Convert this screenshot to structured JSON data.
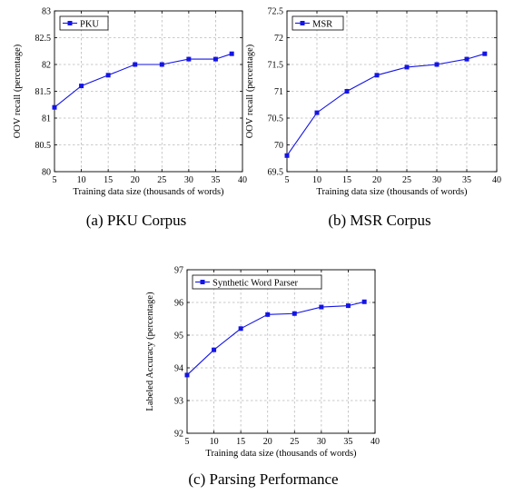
{
  "chart_data": [
    {
      "type": "line",
      "title": "",
      "caption": "(a) PKU Corpus",
      "xlabel": "Training data size (thousands of words)",
      "ylabel": "OOV recall (percentage)",
      "xlim": [
        5,
        40
      ],
      "ylim": [
        80,
        83
      ],
      "xticks": [
        5,
        10,
        15,
        20,
        25,
        30,
        35,
        40
      ],
      "yticks": [
        80,
        80.5,
        81,
        81.5,
        82,
        82.5,
        83
      ],
      "ytick_labels": [
        "80",
        "80.5",
        "81",
        "81.5",
        "82",
        "82.5",
        "83"
      ],
      "grid": true,
      "legend_position": "top-left",
      "series": [
        {
          "name": "PKU",
          "color": "#1414e6",
          "x": [
            5,
            10,
            15,
            20,
            25,
            30,
            35,
            38
          ],
          "y": [
            81.2,
            81.6,
            81.8,
            82.0,
            82.0,
            82.1,
            82.1,
            82.2
          ]
        }
      ]
    },
    {
      "type": "line",
      "title": "",
      "caption": "(b) MSR Corpus",
      "xlabel": "Training data size (thousands of words)",
      "ylabel": "OOV recall (percentage)",
      "xlim": [
        5,
        40
      ],
      "ylim": [
        69.5,
        72.5
      ],
      "xticks": [
        5,
        10,
        15,
        20,
        25,
        30,
        35,
        40
      ],
      "yticks": [
        69.5,
        70,
        70.5,
        71,
        71.5,
        72,
        72.5
      ],
      "ytick_labels": [
        "69.5",
        "70",
        "70.5",
        "71",
        "71.5",
        "72",
        "72.5"
      ],
      "grid": true,
      "legend_position": "top-left",
      "series": [
        {
          "name": "MSR",
          "color": "#1414e6",
          "x": [
            5,
            10,
            15,
            20,
            25,
            30,
            35,
            38
          ],
          "y": [
            69.8,
            70.6,
            71.0,
            71.3,
            71.45,
            71.5,
            71.6,
            71.7
          ]
        }
      ]
    },
    {
      "type": "line",
      "title": "",
      "caption": "(c) Parsing Performance",
      "xlabel": "Training data size (thousands of words)",
      "ylabel": "Labeled Accuracy (percentage)",
      "xlim": [
        5,
        40
      ],
      "ylim": [
        92,
        97
      ],
      "xticks": [
        5,
        10,
        15,
        20,
        25,
        30,
        35,
        40
      ],
      "yticks": [
        92,
        93,
        94,
        95,
        96,
        97
      ],
      "ytick_labels": [
        "92",
        "93",
        "94",
        "95",
        "96",
        "97"
      ],
      "grid": true,
      "legend_position": "top-left",
      "series": [
        {
          "name": "Synthetic Word Parser",
          "color": "#1414e6",
          "x": [
            5,
            10,
            15,
            20,
            25,
            30,
            35,
            38
          ],
          "y": [
            93.78,
            94.55,
            95.2,
            95.63,
            95.66,
            95.86,
            95.9,
            96.02
          ]
        }
      ]
    }
  ]
}
